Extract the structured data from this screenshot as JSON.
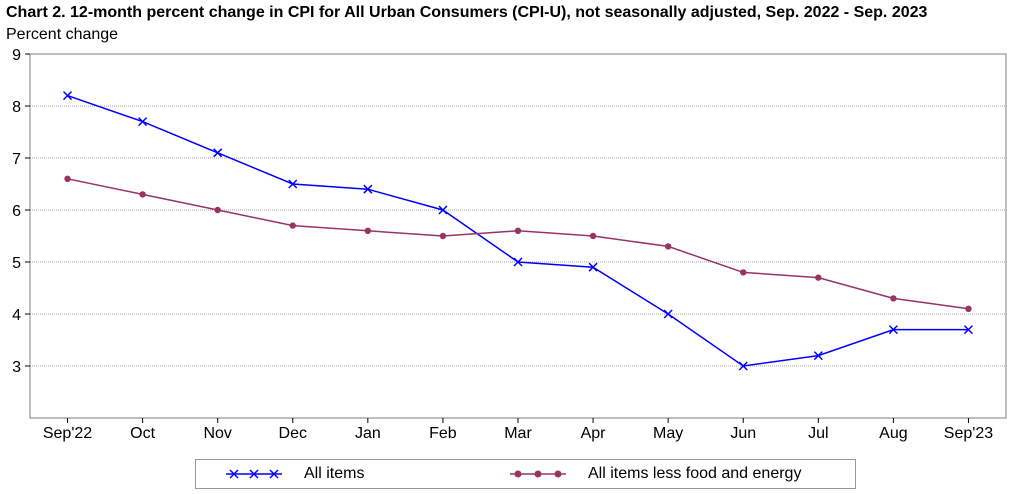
{
  "chart_data": {
    "type": "line",
    "title": "Chart 2. 12-month percent change in CPI for All Urban Consumers (CPI-U), not seasonally adjusted, Sep. 2022 - Sep. 2023",
    "ylabel": "Percent change",
    "xlabel": "",
    "categories": [
      "Sep'22",
      "Oct",
      "Nov",
      "Dec",
      "Jan",
      "Feb",
      "Mar",
      "Apr",
      "May",
      "Jun",
      "Jul",
      "Aug",
      "Sep'23"
    ],
    "ylim": [
      2,
      9
    ],
    "yticks": [
      3,
      4,
      5,
      6,
      7,
      8,
      9
    ],
    "grid": true,
    "legend_position": "bottom",
    "series": [
      {
        "name": "All items",
        "color": "#0000ff",
        "marker": "x",
        "values": [
          8.2,
          7.7,
          7.1,
          6.5,
          6.4,
          6.0,
          5.0,
          4.9,
          4.0,
          3.0,
          3.2,
          3.7,
          3.7
        ]
      },
      {
        "name": "All items less food and energy",
        "color": "#993366",
        "marker": "circle",
        "values": [
          6.6,
          6.3,
          6.0,
          5.7,
          5.6,
          5.5,
          5.6,
          5.5,
          5.3,
          4.8,
          4.7,
          4.3,
          4.1
        ]
      }
    ]
  }
}
